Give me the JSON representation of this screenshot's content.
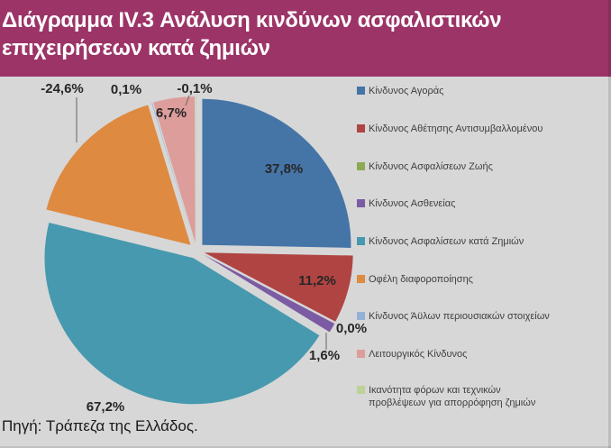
{
  "header": {
    "title_line1": "Διάγραμμα IV.3 Ανάλυση κινδύνων ασφαλιστικών",
    "title_line2": "επιχειρήσεων κατά ζημιών"
  },
  "source_note": "Πηγή: Τράπεζα της Ελλάδος.",
  "colors": {
    "title_bg": "#9C3467",
    "title_text": "#FFFFFF",
    "chart_bg": "#D7D7D7",
    "slice_label_text": "#262626",
    "legend_text": "#3F3F3F",
    "leader_line": "#666666"
  },
  "chart_data": {
    "type": "pie",
    "title": "Ανάλυση κινδύνων ασφαλιστικών επιχειρήσεων κατά ζημιών",
    "legend_position": "right",
    "style": "exploded pie, negative values drawn as absolute magnitudes",
    "series": [
      {
        "name": "Κίνδυνος Αγοράς",
        "value": 37.8,
        "label": "37,8%",
        "color": "#4575A7"
      },
      {
        "name": "Κίνδυνος Αθέτησης Αντισυμβαλλομένου",
        "value": 11.2,
        "label": "11,2%",
        "color": "#B04442"
      },
      {
        "name": "Κίνδυνος Ασφαλίσεων Ζωής",
        "value": 0.0,
        "label": "0,0%",
        "color": "#8DA951"
      },
      {
        "name": "Κίνδυνος Ασθενείας",
        "value": 1.6,
        "label": "1,6%",
        "color": "#7B5BA3"
      },
      {
        "name": "Κίνδυνος Ασφαλίσεων κατά Ζημιών",
        "value": 67.2,
        "label": "67,2%",
        "color": "#4699AE"
      },
      {
        "name": "Οφέλη διαφοροποίησης",
        "value": -24.6,
        "label": "-24,6%",
        "color": "#DE8A41"
      },
      {
        "name": "Κίνδυνος Άϋλων περιουσιακών στοιχείων",
        "value": 0.1,
        "label": "0,1%",
        "color": "#93B1D6"
      },
      {
        "name": "Λειτουργικός Κίνδυνος",
        "value": 6.7,
        "label": "6,7%",
        "color": "#DC9D9B"
      },
      {
        "name": "Ικανότητα φόρων και τεχνικών προβλέψεων για απορρόφηση ζημιών",
        "value": -0.1,
        "label": "-0,1%",
        "color": "#BCD296",
        "wrap": true
      }
    ]
  }
}
